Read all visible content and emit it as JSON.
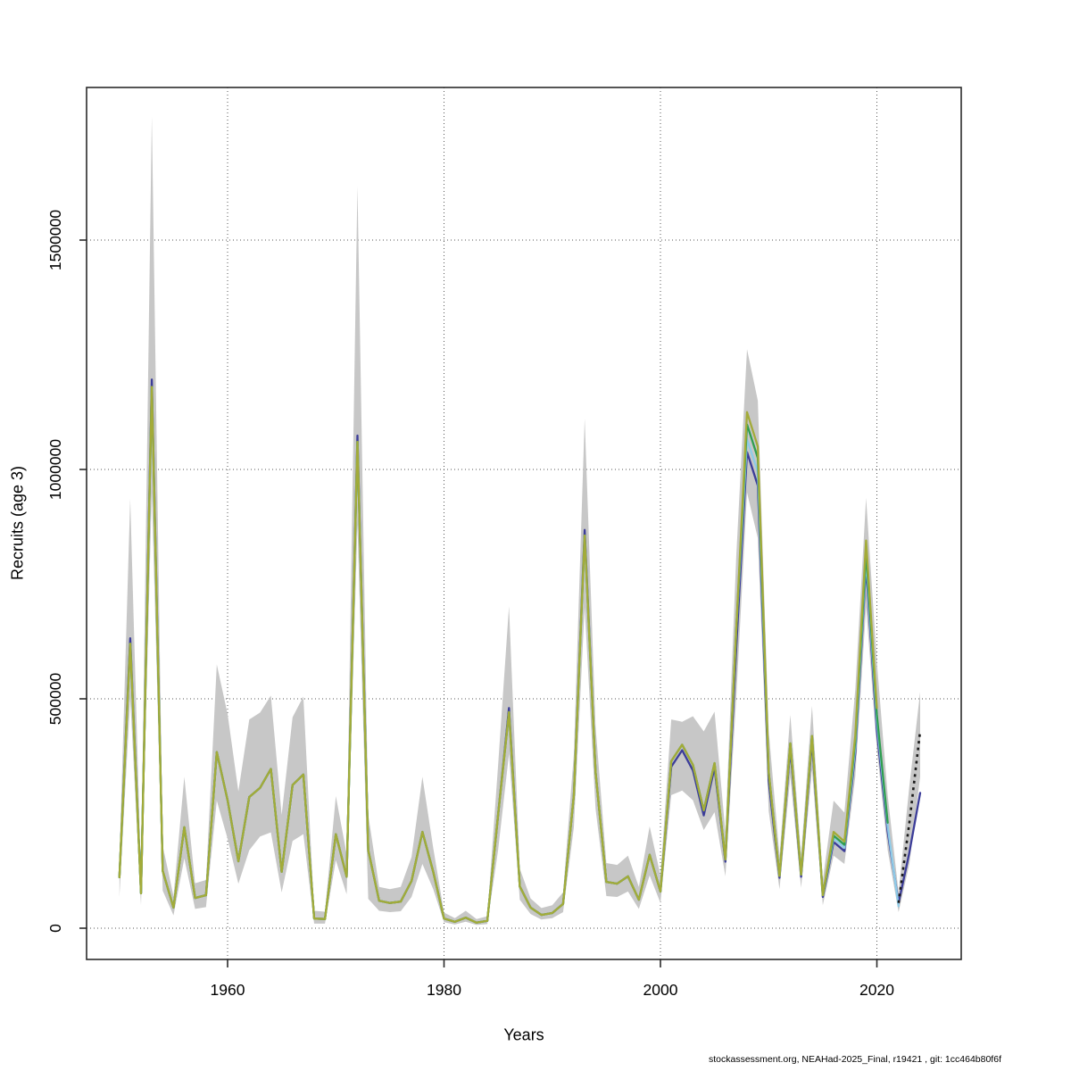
{
  "figure": {
    "footer": "stockassessment.org, NEAHad-2025_Final, r19421 , git: 1cc464b80f6f"
  },
  "chart_data": {
    "type": "line",
    "title": "",
    "xlabel": "Years",
    "ylabel": "Recruits (age 3)",
    "x_ticks": [
      1960,
      1980,
      2000,
      2020
    ],
    "y_ticks": [
      0,
      500000,
      1000000,
      1500000
    ],
    "xlim": [
      1947,
      2027.7
    ],
    "ylim": [
      -68000,
      1838000
    ],
    "grid": "dotted",
    "legend": "none",
    "band": {
      "name": "confidence-band",
      "color": "#c7c7c7",
      "start_year": 1950,
      "low": [
        68000,
        500000,
        50000,
        950000,
        82000,
        28000,
        152000,
        42000,
        46000,
        278000,
        195000,
        97000,
        170000,
        200000,
        209000,
        78000,
        190000,
        205000,
        10000,
        10000,
        148000,
        74000,
        880000,
        64000,
        38000,
        35000,
        37000,
        68000,
        140000,
        85000,
        13000,
        8000,
        14000,
        7000,
        9000,
        170000,
        380000,
        62000,
        31000,
        19000,
        22000,
        35000,
        220000,
        700000,
        260000,
        70000,
        68000,
        80000,
        42000,
        115000,
        55000,
        290000,
        300000,
        279000,
        214000,
        253000,
        113000,
        500000,
        950000,
        850000,
        255000,
        85000,
        330000,
        88000,
        345000,
        50000,
        158000,
        140000,
        330000,
        700000,
        390000,
        170000,
        35000,
        140000,
        330000
      ],
      "high": [
        146000,
        936000,
        115000,
        1770000,
        180000,
        70000,
        330000,
        98000,
        105000,
        575000,
        467000,
        298000,
        455000,
        470000,
        507000,
        247000,
        460000,
        505000,
        38000,
        36000,
        288000,
        162000,
        1618000,
        247000,
        90000,
        85000,
        90000,
        155000,
        330000,
        175000,
        34000,
        22000,
        38000,
        20000,
        26000,
        355000,
        702000,
        130000,
        65000,
        44000,
        50000,
        78000,
        380000,
        1111000,
        440000,
        142000,
        138000,
        158000,
        90000,
        222000,
        115000,
        455000,
        450000,
        462000,
        429000,
        472000,
        209000,
        810000,
        1262000,
        1150000,
        430000,
        158000,
        465000,
        160000,
        485000,
        105000,
        278000,
        252000,
        520000,
        938000,
        580000,
        290000,
        78000,
        310000,
        515000
      ]
    },
    "series": [
      {
        "name": "retro-peel-navy",
        "color": "#3c3d99",
        "start_year": 1950,
        "values": [
          111000,
          632000,
          76000,
          1196000,
          125000,
          45000,
          220000,
          66000,
          72000,
          384000,
          279000,
          146000,
          286000,
          306000,
          347000,
          123000,
          312000,
          335000,
          21000,
          20000,
          205000,
          112000,
          1074000,
          170000,
          60000,
          55000,
          58000,
          103000,
          210000,
          123000,
          21000,
          14000,
          23000,
          12000,
          16000,
          247000,
          480000,
          91000,
          45000,
          29000,
          33000,
          53000,
          290000,
          868000,
          340000,
          101000,
          97000,
          113000,
          62000,
          160000,
          80000,
          352000,
          388000,
          344000,
          246000,
          350000,
          145000,
          610000,
          1038000,
          965000,
          320000,
          110000,
          392000,
          112000,
          408000,
          68000,
          188000,
          168000,
          382000,
          790000,
          430000,
          210000,
          55000,
          165000,
          295000
        ]
      },
      {
        "name": "retro-peel-lightblue",
        "color": "#8ecbe8",
        "start_year": 1950,
        "values": [
          111000,
          620000,
          76000,
          1180000,
          125000,
          45000,
          220000,
          66000,
          72000,
          384000,
          279000,
          146000,
          286000,
          306000,
          347000,
          123000,
          312000,
          335000,
          21000,
          20000,
          205000,
          112000,
          1060000,
          170000,
          60000,
          55000,
          58000,
          103000,
          210000,
          123000,
          21000,
          14000,
          23000,
          12000,
          16000,
          247000,
          471000,
          91000,
          45000,
          29000,
          33000,
          53000,
          290000,
          856000,
          340000,
          101000,
          97000,
          113000,
          62000,
          160000,
          80000,
          364000,
          400000,
          356000,
          257000,
          360000,
          150000,
          650000,
          1066000,
          995000,
          340000,
          114000,
          403000,
          117000,
          419000,
          72000,
          196000,
          175000,
          395000,
          805000,
          450000,
          222000,
          48000
        ]
      },
      {
        "name": "retro-peel-green",
        "color": "#2f9e50",
        "start_year": 1950,
        "values": [
          111000,
          620000,
          76000,
          1180000,
          125000,
          45000,
          220000,
          66000,
          72000,
          384000,
          279000,
          146000,
          286000,
          306000,
          347000,
          123000,
          312000,
          335000,
          21000,
          20000,
          205000,
          112000,
          1060000,
          170000,
          60000,
          55000,
          58000,
          103000,
          210000,
          123000,
          21000,
          14000,
          23000,
          12000,
          16000,
          247000,
          471000,
          91000,
          45000,
          29000,
          33000,
          53000,
          290000,
          856000,
          340000,
          101000,
          97000,
          113000,
          62000,
          160000,
          80000,
          364000,
          400000,
          356000,
          257000,
          360000,
          150000,
          650000,
          1098000,
          1025000,
          340000,
          114000,
          403000,
          117000,
          419000,
          72000,
          202000,
          182000,
          408000,
          820000,
          465000,
          230000
        ]
      },
      {
        "name": "retro-peel-olive",
        "color": "#a3ab39",
        "start_year": 1950,
        "values": [
          111000,
          620000,
          76000,
          1180000,
          125000,
          45000,
          220000,
          66000,
          72000,
          384000,
          279000,
          146000,
          286000,
          306000,
          347000,
          123000,
          312000,
          335000,
          21000,
          20000,
          205000,
          112000,
          1060000,
          170000,
          60000,
          55000,
          58000,
          103000,
          210000,
          123000,
          21000,
          14000,
          23000,
          12000,
          16000,
          247000,
          471000,
          91000,
          45000,
          29000,
          33000,
          53000,
          290000,
          856000,
          340000,
          101000,
          97000,
          113000,
          62000,
          160000,
          80000,
          364000,
          400000,
          356000,
          257000,
          360000,
          150000,
          650000,
          1125000,
          1050000,
          340000,
          114000,
          403000,
          117000,
          419000,
          72000,
          210000,
          189000,
          420000,
          845000,
          480000
        ]
      }
    ],
    "forecast": {
      "name": "base-run-forecast",
      "color": "#1a1a1a",
      "style": "dotted",
      "years": [
        2022,
        2023,
        2024
      ],
      "values": [
        55000,
        230000,
        430000
      ]
    }
  }
}
